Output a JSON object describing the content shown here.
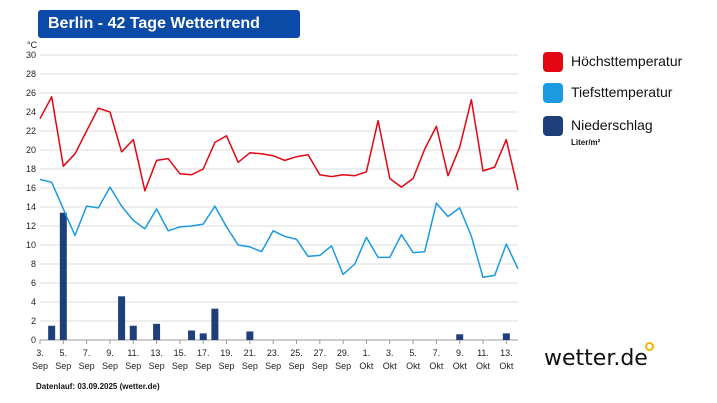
{
  "header": {
    "title": "Berlin - 42 Tage Wettertrend"
  },
  "legend": {
    "items": [
      {
        "label": "Höchsttemperatur",
        "color": "#e30613"
      },
      {
        "label": "Tiefsttemperatur",
        "color": "#1a9ae0"
      },
      {
        "label": "Niederschlag",
        "color": "#1f3f7a",
        "unit": "Liter/m²"
      }
    ]
  },
  "logo": {
    "text": "wetter.de"
  },
  "footer": {
    "text": "Datenlauf: 03.09.2025 (wetter.de)"
  },
  "chart_data": {
    "type": "line",
    "y_unit": "°C",
    "ylim": [
      0,
      30
    ],
    "yticks": [
      0,
      2,
      4,
      6,
      8,
      10,
      12,
      14,
      16,
      18,
      20,
      22,
      24,
      26,
      28,
      30
    ],
    "x": [
      "3.9.",
      "4.9.",
      "5.9.",
      "6.9.",
      "7.9.",
      "8.9.",
      "9.9.",
      "10.9.",
      "11.9.",
      "12.9.",
      "13.9.",
      "14.9.",
      "15.9.",
      "16.9.",
      "17.9.",
      "18.9.",
      "19.9.",
      "20.9.",
      "21.9.",
      "22.9.",
      "23.9.",
      "24.9.",
      "25.9.",
      "26.9.",
      "27.9.",
      "28.9.",
      "29.9.",
      "30.9.",
      "1.10.",
      "2.10.",
      "3.10.",
      "4.10.",
      "5.10.",
      "6.10.",
      "7.10.",
      "8.10.",
      "9.10.",
      "10.10.",
      "11.10.",
      "12.10.",
      "13.10.",
      "14.10."
    ],
    "xtick_labels": [
      {
        "day": "3.",
        "month": "Sep",
        "index": 0
      },
      {
        "day": "5.",
        "month": "Sep",
        "index": 2
      },
      {
        "day": "7.",
        "month": "Sep",
        "index": 4
      },
      {
        "day": "9.",
        "month": "Sep",
        "index": 6
      },
      {
        "day": "11.",
        "month": "Sep",
        "index": 8
      },
      {
        "day": "13.",
        "month": "Sep",
        "index": 10
      },
      {
        "day": "15.",
        "month": "Sep",
        "index": 12
      },
      {
        "day": "17.",
        "month": "Sep",
        "index": 14
      },
      {
        "day": "19.",
        "month": "Sep",
        "index": 16
      },
      {
        "day": "21.",
        "month": "Sep",
        "index": 18
      },
      {
        "day": "23.",
        "month": "Sep",
        "index": 20
      },
      {
        "day": "25.",
        "month": "Sep",
        "index": 22
      },
      {
        "day": "27.",
        "month": "Sep",
        "index": 24
      },
      {
        "day": "29.",
        "month": "Sep",
        "index": 26
      },
      {
        "day": "1.",
        "month": "Okt",
        "index": 28
      },
      {
        "day": "3.",
        "month": "Okt",
        "index": 30
      },
      {
        "day": "5.",
        "month": "Okt",
        "index": 32
      },
      {
        "day": "7.",
        "month": "Okt",
        "index": 34
      },
      {
        "day": "9.",
        "month": "Okt",
        "index": 36
      },
      {
        "day": "11.",
        "month": "Okt",
        "index": 38
      },
      {
        "day": "13.",
        "month": "Okt",
        "index": 40
      }
    ],
    "series": [
      {
        "name": "Höchsttemperatur",
        "color": "#e30613",
        "values": [
          23.3,
          25.6,
          18.3,
          19.6,
          22.0,
          24.4,
          24.0,
          19.8,
          21.1,
          15.7,
          18.9,
          19.1,
          17.5,
          17.4,
          18.0,
          20.8,
          21.5,
          18.7,
          19.7,
          19.6,
          19.4,
          18.9,
          19.3,
          19.5,
          17.4,
          17.2,
          17.4,
          17.3,
          17.7,
          23.1,
          17.0,
          16.1,
          17.0,
          20.1,
          22.5,
          17.3,
          20.3,
          25.3,
          17.8,
          18.2,
          21.1,
          15.8
        ]
      },
      {
        "name": "Tiefsttemperatur",
        "color": "#1a9ae0",
        "values": [
          16.9,
          16.6,
          13.8,
          11.0,
          14.1,
          13.9,
          16.1,
          14.1,
          12.6,
          11.7,
          13.8,
          11.5,
          11.9,
          12.0,
          12.2,
          14.1,
          11.9,
          10.0,
          9.8,
          9.3,
          11.5,
          10.9,
          10.6,
          8.8,
          8.9,
          9.9,
          6.9,
          8.0,
          10.8,
          8.7,
          8.7,
          11.1,
          9.2,
          9.3,
          14.4,
          13.0,
          13.9,
          10.9,
          6.6,
          6.8,
          10.1,
          7.5
        ]
      },
      {
        "name": "Niederschlag",
        "color": "#1f3f7a",
        "unit": "Liter/m²",
        "values": [
          0,
          1.5,
          13.4,
          0,
          0,
          0,
          0,
          4.6,
          1.5,
          0,
          1.7,
          0,
          0,
          1.0,
          0.7,
          3.3,
          0,
          0,
          0.9,
          0,
          0,
          0,
          0,
          0,
          0,
          0,
          0,
          0,
          0,
          0,
          0,
          0,
          0,
          0,
          0,
          0,
          0.6,
          0,
          0,
          0,
          0.7,
          0
        ],
        "note_values_by_day_index": true
      }
    ],
    "grid": true
  }
}
